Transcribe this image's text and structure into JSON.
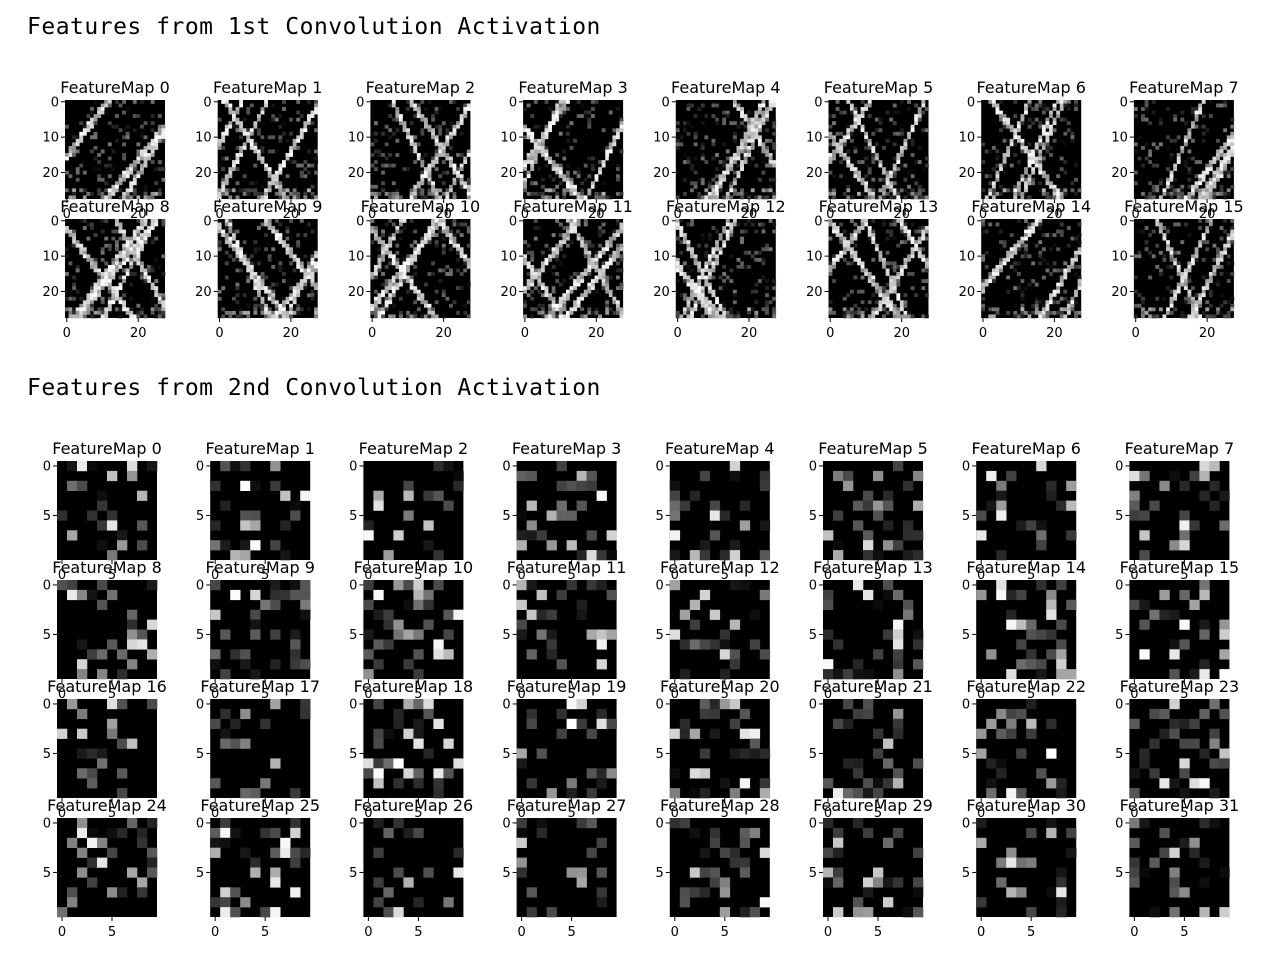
{
  "sections": [
    {
      "title": "Features from 1st Convolution Activation",
      "map_prefix": "FeatureMap",
      "map_count": 16,
      "columns": 8,
      "rows": 2,
      "map_size": 28,
      "y_ticks": [
        "0",
        "10",
        "20"
      ],
      "x_ticks": [
        "0",
        "20"
      ],
      "colormap": "gray"
    },
    {
      "title": "Features from 2nd Convolution Activation",
      "map_prefix": "FeatureMap",
      "map_count": 32,
      "columns": 8,
      "rows": 4,
      "map_size": 10,
      "y_ticks": [
        "0",
        "5"
      ],
      "x_ticks": [
        "0",
        "5"
      ],
      "colormap": "gray"
    }
  ],
  "chart_data": [
    {
      "type": "heatmap",
      "title": "Features from 1st Convolution Activation",
      "subplot_titles": [
        "FeatureMap 0",
        "FeatureMap 1",
        "FeatureMap 2",
        "FeatureMap 3",
        "FeatureMap 4",
        "FeatureMap 5",
        "FeatureMap 6",
        "FeatureMap 7",
        "FeatureMap 8",
        "FeatureMap 9",
        "FeatureMap 10",
        "FeatureMap 11",
        "FeatureMap 12",
        "FeatureMap 13",
        "FeatureMap 14",
        "FeatureMap 15"
      ],
      "xlim": [
        0,
        27
      ],
      "ylim": [
        27,
        0
      ],
      "xticks": [
        0,
        20
      ],
      "yticks": [
        0,
        10,
        20
      ],
      "colormap": "gray"
    },
    {
      "type": "heatmap",
      "title": "Features from 2nd Convolution Activation",
      "subplot_titles": [
        "FeatureMap 0",
        "FeatureMap 1",
        "FeatureMap 2",
        "FeatureMap 3",
        "FeatureMap 4",
        "FeatureMap 5",
        "FeatureMap 6",
        "FeatureMap 7",
        "FeatureMap 8",
        "FeatureMap 9",
        "FeatureMap 10",
        "FeatureMap 11",
        "FeatureMap 12",
        "FeatureMap 13",
        "FeatureMap 14",
        "FeatureMap 15",
        "FeatureMap 16",
        "FeatureMap 17",
        "FeatureMap 18",
        "FeatureMap 19",
        "FeatureMap 20",
        "FeatureMap 21",
        "FeatureMap 22",
        "FeatureMap 23",
        "FeatureMap 24",
        "FeatureMap 25",
        "FeatureMap 26",
        "FeatureMap 27",
        "FeatureMap 28",
        "FeatureMap 29",
        "FeatureMap 30",
        "FeatureMap 31"
      ],
      "xlim": [
        0,
        9
      ],
      "ylim": [
        9,
        0
      ],
      "xticks": [
        0,
        5
      ],
      "yticks": [
        0,
        5
      ],
      "colormap": "gray"
    }
  ]
}
